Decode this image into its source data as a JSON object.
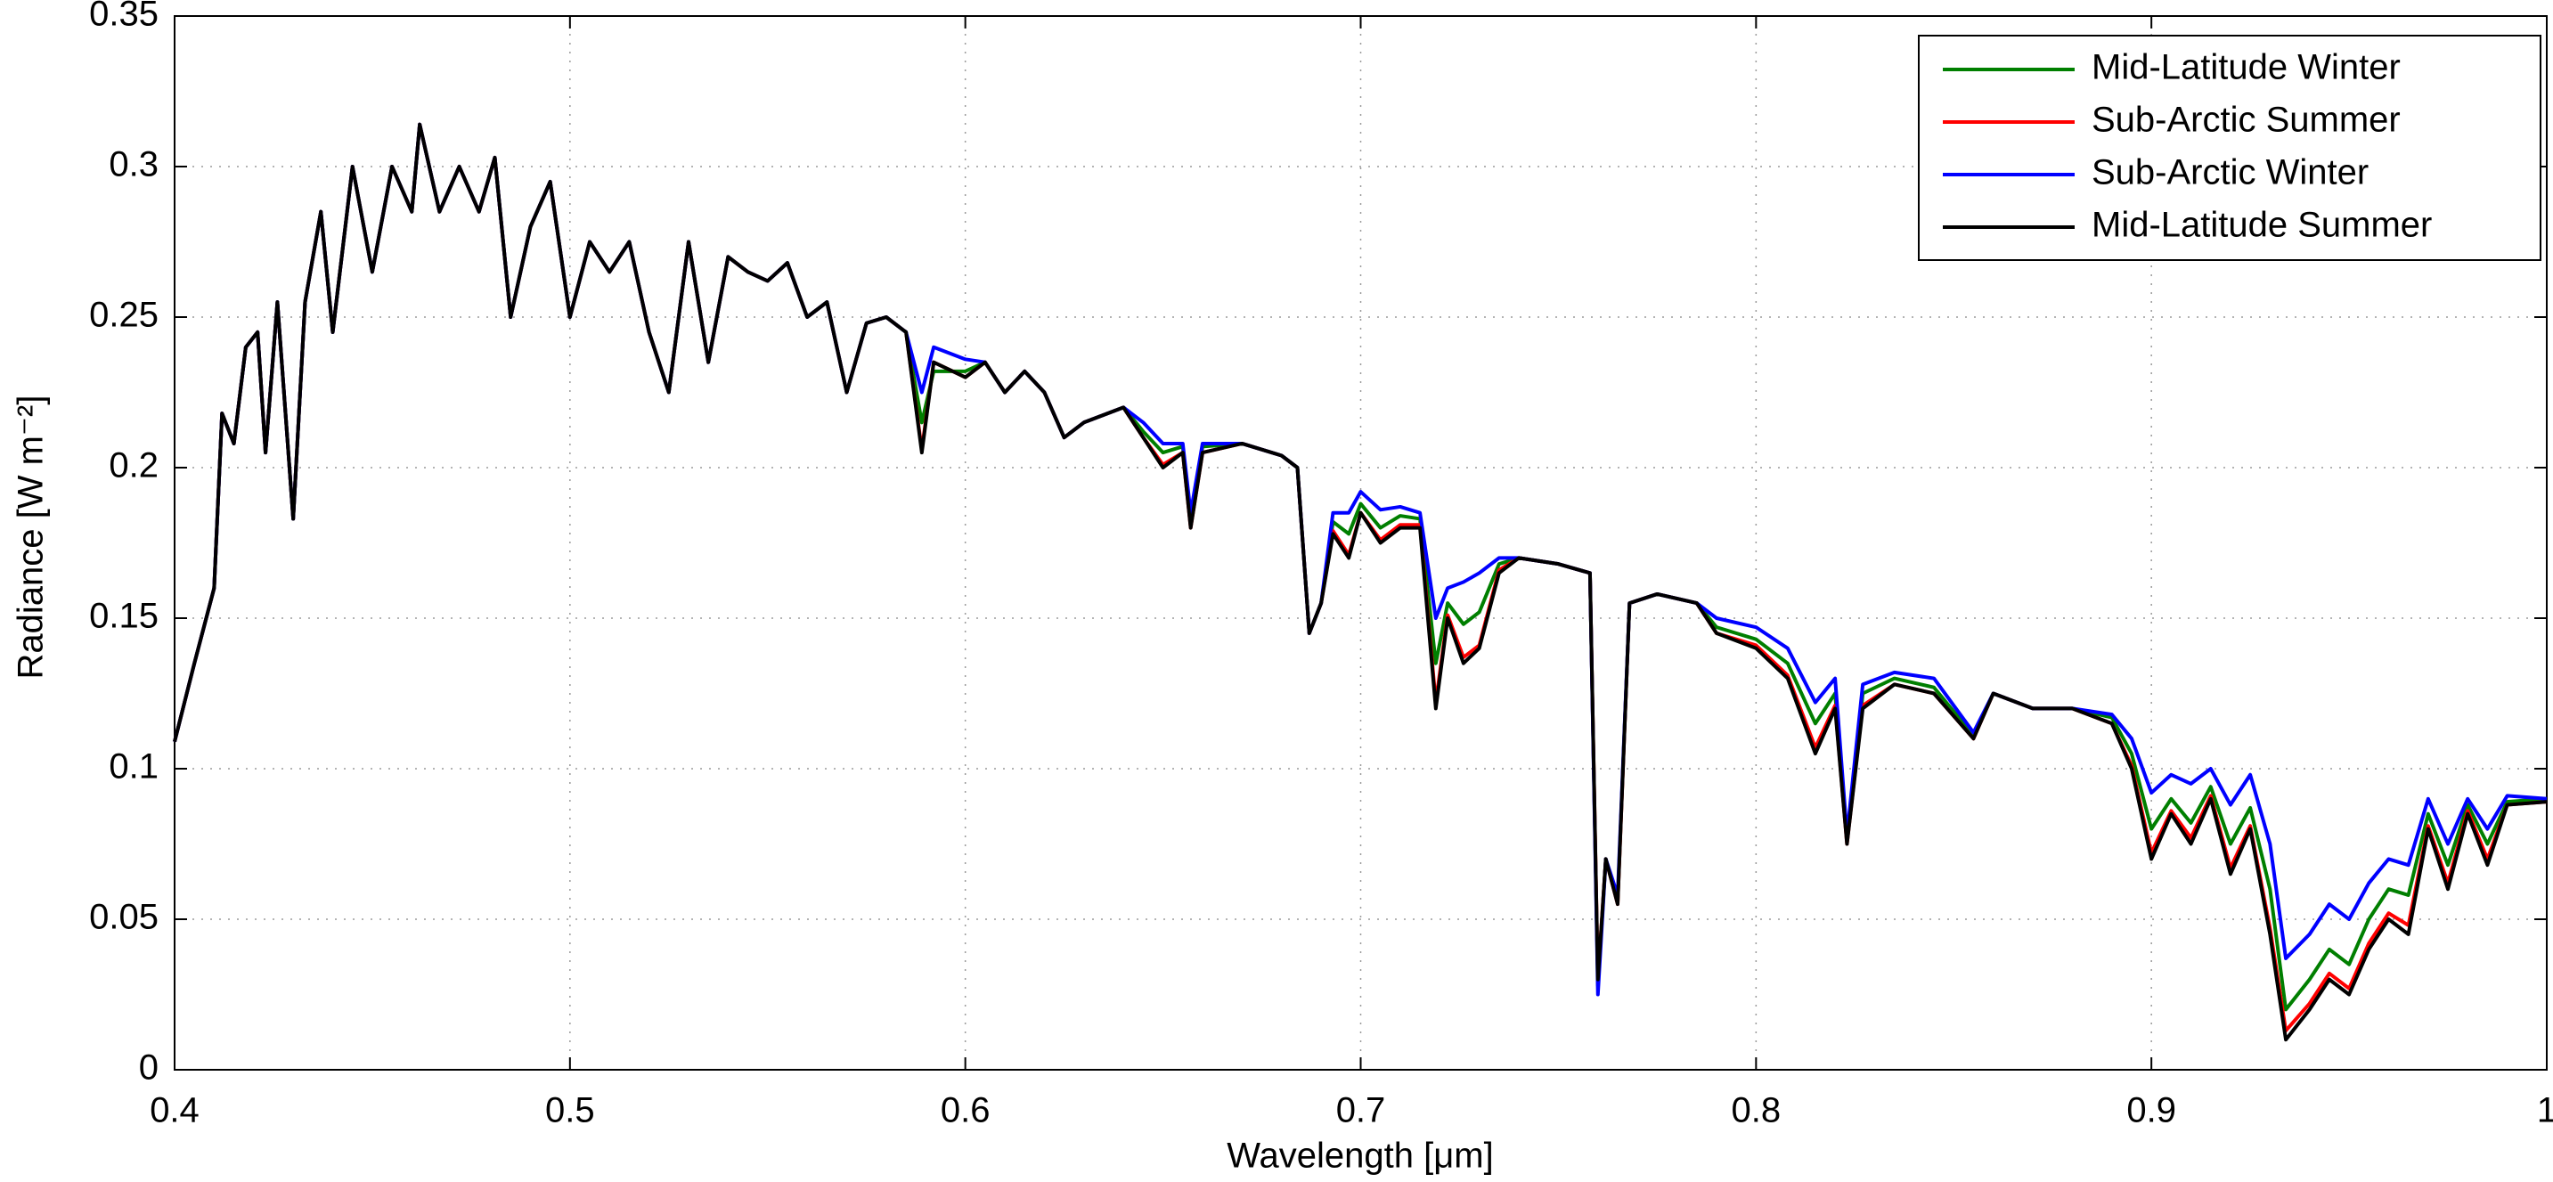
{
  "chart_data": {
    "type": "line",
    "xlabel": "Wavelength [μm]",
    "ylabel": "Radiance [W m⁻²]",
    "x": [
      0.4,
      0.405,
      0.41,
      0.412,
      0.415,
      0.418,
      0.421,
      0.423,
      0.426,
      0.43,
      0.433,
      0.437,
      0.44,
      0.445,
      0.45,
      0.455,
      0.46,
      0.462,
      0.467,
      0.472,
      0.477,
      0.481,
      0.485,
      0.49,
      0.495,
      0.5,
      0.505,
      0.51,
      0.515,
      0.52,
      0.525,
      0.53,
      0.535,
      0.54,
      0.545,
      0.55,
      0.555,
      0.56,
      0.565,
      0.57,
      0.575,
      0.58,
      0.585,
      0.589,
      0.592,
      0.6,
      0.605,
      0.61,
      0.615,
      0.62,
      0.625,
      0.63,
      0.64,
      0.645,
      0.65,
      0.655,
      0.657,
      0.66,
      0.67,
      0.68,
      0.684,
      0.687,
      0.69,
      0.693,
      0.697,
      0.7,
      0.705,
      0.71,
      0.715,
      0.719,
      0.722,
      0.726,
      0.73,
      0.735,
      0.74,
      0.75,
      0.758,
      0.76,
      0.762,
      0.765,
      0.768,
      0.775,
      0.785,
      0.79,
      0.8,
      0.808,
      0.815,
      0.82,
      0.823,
      0.827,
      0.835,
      0.845,
      0.855,
      0.86,
      0.87,
      0.88,
      0.89,
      0.895,
      0.9,
      0.905,
      0.91,
      0.915,
      0.92,
      0.925,
      0.93,
      0.934,
      0.94,
      0.945,
      0.95,
      0.955,
      0.96,
      0.965,
      0.97,
      0.975,
      0.98,
      0.985,
      0.99,
      1.0
    ],
    "series": [
      {
        "name": "Mid-Latitude Winter",
        "color": "#007f00",
        "values": [
          0.109,
          0.135,
          0.16,
          0.218,
          0.208,
          0.24,
          0.245,
          0.205,
          0.255,
          0.183,
          0.255,
          0.285,
          0.245,
          0.3,
          0.265,
          0.3,
          0.285,
          0.314,
          0.285,
          0.3,
          0.285,
          0.303,
          0.25,
          0.28,
          0.295,
          0.25,
          0.275,
          0.265,
          0.275,
          0.245,
          0.225,
          0.275,
          0.235,
          0.27,
          0.265,
          0.262,
          0.268,
          0.25,
          0.255,
          0.225,
          0.248,
          0.25,
          0.245,
          0.215,
          0.232,
          0.232,
          0.235,
          0.225,
          0.232,
          0.225,
          0.21,
          0.215,
          0.22,
          0.212,
          0.205,
          0.207,
          0.182,
          0.207,
          0.208,
          0.204,
          0.2,
          0.145,
          0.155,
          0.182,
          0.178,
          0.188,
          0.18,
          0.184,
          0.183,
          0.135,
          0.155,
          0.148,
          0.152,
          0.168,
          0.17,
          0.168,
          0.165,
          0.028,
          0.07,
          0.056,
          0.155,
          0.158,
          0.155,
          0.147,
          0.143,
          0.135,
          0.115,
          0.125,
          0.076,
          0.125,
          0.13,
          0.127,
          0.111,
          0.125,
          0.12,
          0.12,
          0.117,
          0.105,
          0.08,
          0.09,
          0.082,
          0.094,
          0.075,
          0.087,
          0.06,
          0.02,
          0.03,
          0.04,
          0.035,
          0.05,
          0.06,
          0.058,
          0.085,
          0.068,
          0.088,
          0.075,
          0.089,
          0.09
        ]
      },
      {
        "name": "Sub-Arctic Summer",
        "color": "#ff0000",
        "values": [
          0.109,
          0.135,
          0.16,
          0.218,
          0.208,
          0.24,
          0.245,
          0.205,
          0.255,
          0.183,
          0.255,
          0.285,
          0.245,
          0.3,
          0.265,
          0.3,
          0.285,
          0.314,
          0.285,
          0.3,
          0.285,
          0.303,
          0.25,
          0.28,
          0.295,
          0.25,
          0.275,
          0.265,
          0.275,
          0.245,
          0.225,
          0.275,
          0.235,
          0.27,
          0.265,
          0.262,
          0.268,
          0.25,
          0.255,
          0.225,
          0.248,
          0.25,
          0.245,
          0.206,
          0.235,
          0.23,
          0.235,
          0.225,
          0.232,
          0.225,
          0.21,
          0.215,
          0.22,
          0.21,
          0.201,
          0.205,
          0.18,
          0.205,
          0.208,
          0.204,
          0.2,
          0.145,
          0.155,
          0.179,
          0.171,
          0.185,
          0.176,
          0.181,
          0.181,
          0.122,
          0.151,
          0.137,
          0.141,
          0.166,
          0.17,
          0.168,
          0.165,
          0.03,
          0.07,
          0.055,
          0.155,
          0.158,
          0.155,
          0.145,
          0.141,
          0.131,
          0.107,
          0.121,
          0.075,
          0.121,
          0.128,
          0.125,
          0.11,
          0.125,
          0.12,
          0.12,
          0.115,
          0.101,
          0.072,
          0.086,
          0.077,
          0.091,
          0.067,
          0.081,
          0.047,
          0.013,
          0.022,
          0.032,
          0.027,
          0.042,
          0.052,
          0.048,
          0.081,
          0.062,
          0.086,
          0.07,
          0.088,
          0.089
        ]
      },
      {
        "name": "Sub-Arctic Winter",
        "color": "#0000ff",
        "values": [
          0.109,
          0.135,
          0.16,
          0.218,
          0.208,
          0.24,
          0.245,
          0.205,
          0.255,
          0.183,
          0.255,
          0.285,
          0.245,
          0.3,
          0.265,
          0.3,
          0.285,
          0.314,
          0.285,
          0.3,
          0.285,
          0.303,
          0.25,
          0.28,
          0.295,
          0.25,
          0.275,
          0.265,
          0.275,
          0.245,
          0.225,
          0.275,
          0.235,
          0.27,
          0.265,
          0.262,
          0.268,
          0.25,
          0.255,
          0.225,
          0.248,
          0.25,
          0.245,
          0.225,
          0.24,
          0.236,
          0.235,
          0.225,
          0.232,
          0.225,
          0.21,
          0.215,
          0.22,
          0.215,
          0.208,
          0.208,
          0.185,
          0.208,
          0.208,
          0.204,
          0.2,
          0.145,
          0.155,
          0.185,
          0.185,
          0.192,
          0.186,
          0.187,
          0.185,
          0.15,
          0.16,
          0.162,
          0.165,
          0.17,
          0.17,
          0.168,
          0.165,
          0.025,
          0.07,
          0.058,
          0.155,
          0.158,
          0.155,
          0.15,
          0.147,
          0.14,
          0.122,
          0.13,
          0.078,
          0.128,
          0.132,
          0.13,
          0.112,
          0.125,
          0.12,
          0.12,
          0.118,
          0.11,
          0.092,
          0.098,
          0.095,
          0.1,
          0.088,
          0.098,
          0.075,
          0.037,
          0.045,
          0.055,
          0.05,
          0.062,
          0.07,
          0.068,
          0.09,
          0.075,
          0.09,
          0.08,
          0.091,
          0.09
        ]
      },
      {
        "name": "Mid-Latitude Summer",
        "color": "#000000",
        "values": [
          0.109,
          0.135,
          0.16,
          0.218,
          0.208,
          0.24,
          0.245,
          0.205,
          0.255,
          0.183,
          0.255,
          0.285,
          0.245,
          0.3,
          0.265,
          0.3,
          0.285,
          0.314,
          0.285,
          0.3,
          0.285,
          0.303,
          0.25,
          0.28,
          0.295,
          0.25,
          0.275,
          0.265,
          0.275,
          0.245,
          0.225,
          0.275,
          0.235,
          0.27,
          0.265,
          0.262,
          0.268,
          0.25,
          0.255,
          0.225,
          0.248,
          0.25,
          0.245,
          0.205,
          0.235,
          0.23,
          0.235,
          0.225,
          0.232,
          0.225,
          0.21,
          0.215,
          0.22,
          0.21,
          0.2,
          0.205,
          0.18,
          0.205,
          0.208,
          0.204,
          0.2,
          0.145,
          0.155,
          0.178,
          0.17,
          0.185,
          0.175,
          0.18,
          0.18,
          0.12,
          0.15,
          0.135,
          0.14,
          0.165,
          0.17,
          0.168,
          0.165,
          0.03,
          0.07,
          0.055,
          0.155,
          0.158,
          0.155,
          0.145,
          0.14,
          0.13,
          0.105,
          0.12,
          0.075,
          0.12,
          0.128,
          0.125,
          0.11,
          0.125,
          0.12,
          0.12,
          0.115,
          0.1,
          0.07,
          0.085,
          0.075,
          0.09,
          0.065,
          0.08,
          0.045,
          0.01,
          0.02,
          0.03,
          0.025,
          0.04,
          0.05,
          0.045,
          0.08,
          0.06,
          0.085,
          0.068,
          0.088,
          0.089
        ]
      }
    ],
    "xlim": [
      0.4,
      1
    ],
    "xticks": [
      0.4,
      0.5,
      0.6,
      0.7,
      0.8,
      0.9,
      1
    ],
    "ylim": [
      0,
      0.35
    ],
    "yticks": [
      0,
      0.05,
      0.1,
      0.15,
      0.2,
      0.25,
      0.3,
      0.35
    ],
    "grid": true,
    "legend": "upper right"
  }
}
